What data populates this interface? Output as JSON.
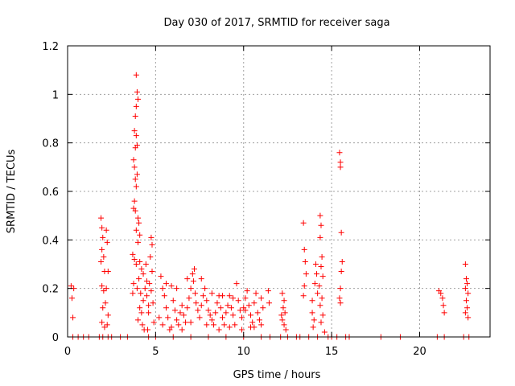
{
  "chart_data": {
    "type": "scatter",
    "title": "Day 030 of 2017, SRMTID for receiver saga",
    "xlabel": "GPS time / hours",
    "ylabel": "SRMTID / TECUs",
    "xlim": [
      0,
      24
    ],
    "ylim": [
      0,
      1.2
    ],
    "xticks": [
      0,
      5,
      10,
      15,
      20
    ],
    "xtick_labels": [
      "0",
      "5",
      "10",
      "15",
      "20"
    ],
    "yticks": [
      0,
      0.2,
      0.4,
      0.6,
      0.8,
      1.0,
      1.2
    ],
    "ytick_labels": [
      "0",
      "0.2",
      "0.4",
      "0.6",
      "0.8",
      "1",
      "1.2"
    ],
    "grid": true,
    "marker": "+",
    "color": "#ff0000",
    "series": [
      {
        "name": "SRMTID",
        "points": [
          [
            0.2,
            0.21
          ],
          [
            0.25,
            0.16
          ],
          [
            0.3,
            0.08
          ],
          [
            0.35,
            0.2
          ],
          [
            0.3,
            0.0
          ],
          [
            0.6,
            0.0
          ],
          [
            0.9,
            0.0
          ],
          [
            1.2,
            0.0
          ],
          [
            1.9,
            0.49
          ],
          [
            1.95,
            0.45
          ],
          [
            2.0,
            0.41
          ],
          [
            1.95,
            0.36
          ],
          [
            2.05,
            0.33
          ],
          [
            1.9,
            0.31
          ],
          [
            2.1,
            0.27
          ],
          [
            1.95,
            0.21
          ],
          [
            2.05,
            0.19
          ],
          [
            2.0,
            0.12
          ],
          [
            1.95,
            0.06
          ],
          [
            2.1,
            0.04
          ],
          [
            2.2,
            0.44
          ],
          [
            2.25,
            0.39
          ],
          [
            2.3,
            0.27
          ],
          [
            2.2,
            0.2
          ],
          [
            2.15,
            0.14
          ],
          [
            2.3,
            0.09
          ],
          [
            2.25,
            0.05
          ],
          [
            2.3,
            0.0
          ],
          [
            2.0,
            0.0
          ],
          [
            1.8,
            0.0
          ],
          [
            2.5,
            0.0
          ],
          [
            3.9,
            1.08
          ],
          [
            3.95,
            1.01
          ],
          [
            4.0,
            0.98
          ],
          [
            3.9,
            0.95
          ],
          [
            3.85,
            0.91
          ],
          [
            3.8,
            0.85
          ],
          [
            3.9,
            0.83
          ],
          [
            3.95,
            0.79
          ],
          [
            3.85,
            0.78
          ],
          [
            3.75,
            0.73
          ],
          [
            3.8,
            0.7
          ],
          [
            3.95,
            0.67
          ],
          [
            3.85,
            0.65
          ],
          [
            3.9,
            0.62
          ],
          [
            3.8,
            0.56
          ],
          [
            3.75,
            0.53
          ],
          [
            3.85,
            0.52
          ],
          [
            4.0,
            0.49
          ],
          [
            4.05,
            0.47
          ],
          [
            3.9,
            0.44
          ],
          [
            4.1,
            0.42
          ],
          [
            4.0,
            0.39
          ],
          [
            3.7,
            0.34
          ],
          [
            3.8,
            0.32
          ],
          [
            3.9,
            0.3
          ],
          [
            4.1,
            0.31
          ],
          [
            4.2,
            0.28
          ],
          [
            4.3,
            0.26
          ],
          [
            4.05,
            0.24
          ],
          [
            3.95,
            0.2
          ],
          [
            4.15,
            0.18
          ],
          [
            4.3,
            0.15
          ],
          [
            4.1,
            0.12
          ],
          [
            4.2,
            0.1
          ],
          [
            4.0,
            0.07
          ],
          [
            4.25,
            0.05
          ],
          [
            4.35,
            0.03
          ],
          [
            3.7,
            0.18
          ],
          [
            3.75,
            0.22
          ],
          [
            4.4,
            0.2
          ],
          [
            4.5,
            0.17
          ],
          [
            4.6,
            0.13
          ],
          [
            4.75,
            0.41
          ],
          [
            4.8,
            0.38
          ],
          [
            4.7,
            0.33
          ],
          [
            4.8,
            0.27
          ],
          [
            4.65,
            0.22
          ],
          [
            4.75,
            0.19
          ],
          [
            4.85,
            0.14
          ],
          [
            4.6,
            0.1
          ],
          [
            4.9,
            0.06
          ],
          [
            4.55,
            0.03
          ],
          [
            4.45,
            0.3
          ],
          [
            4.5,
            0.23
          ],
          [
            3.4,
            0.0
          ],
          [
            3.0,
            0.0
          ],
          [
            4.6,
            0.0
          ],
          [
            5.3,
            0.25
          ],
          [
            5.4,
            0.2
          ],
          [
            5.5,
            0.17
          ],
          [
            5.6,
            0.12
          ],
          [
            5.7,
            0.08
          ],
          [
            5.4,
            0.05
          ],
          [
            5.8,
            0.03
          ],
          [
            5.9,
            0.21
          ],
          [
            6.0,
            0.15
          ],
          [
            6.1,
            0.11
          ],
          [
            6.2,
            0.07
          ],
          [
            6.3,
            0.05
          ],
          [
            6.4,
            0.1
          ],
          [
            6.5,
            0.13
          ],
          [
            6.6,
            0.09
          ],
          [
            6.7,
            0.06
          ],
          [
            6.8,
            0.12
          ],
          [
            6.9,
            0.16
          ],
          [
            7.0,
            0.2
          ],
          [
            7.1,
            0.26
          ],
          [
            7.2,
            0.28
          ],
          [
            7.15,
            0.23
          ],
          [
            7.25,
            0.18
          ],
          [
            7.3,
            0.14
          ],
          [
            7.4,
            0.11
          ],
          [
            7.5,
            0.08
          ],
          [
            7.6,
            0.13
          ],
          [
            7.7,
            0.17
          ],
          [
            7.8,
            0.2
          ],
          [
            7.9,
            0.15
          ],
          [
            8.0,
            0.11
          ],
          [
            8.1,
            0.09
          ],
          [
            8.2,
            0.07
          ],
          [
            8.3,
            0.05
          ],
          [
            8.4,
            0.1
          ],
          [
            8.5,
            0.14
          ],
          [
            8.6,
            0.17
          ],
          [
            8.7,
            0.12
          ],
          [
            8.8,
            0.08
          ],
          [
            8.9,
            0.05
          ],
          [
            9.0,
            0.1
          ],
          [
            9.1,
            0.13
          ],
          [
            9.2,
            0.17
          ],
          [
            9.3,
            0.12
          ],
          [
            9.4,
            0.09
          ],
          [
            9.5,
            0.05
          ],
          [
            9.6,
            0.22
          ],
          [
            9.7,
            0.15
          ],
          [
            9.8,
            0.11
          ],
          [
            9.9,
            0.08
          ],
          [
            10.0,
            0.12
          ],
          [
            10.1,
            0.16
          ],
          [
            10.2,
            0.19
          ],
          [
            10.3,
            0.13
          ],
          [
            10.4,
            0.09
          ],
          [
            10.5,
            0.06
          ],
          [
            10.6,
            0.14
          ],
          [
            10.7,
            0.18
          ],
          [
            10.8,
            0.1
          ],
          [
            10.9,
            0.07
          ],
          [
            11.0,
            0.16
          ],
          [
            11.1,
            0.12
          ],
          [
            11.4,
            0.19
          ],
          [
            11.45,
            0.14
          ],
          [
            5.2,
            0.08
          ],
          [
            5.6,
            0.22
          ],
          [
            6.2,
            0.2
          ],
          [
            6.8,
            0.24
          ],
          [
            7.6,
            0.24
          ],
          [
            8.2,
            0.18
          ],
          [
            8.8,
            0.17
          ],
          [
            9.4,
            0.16
          ],
          [
            10.1,
            0.11
          ],
          [
            10.6,
            0.04
          ],
          [
            5.9,
            0.04
          ],
          [
            6.5,
            0.03
          ],
          [
            7.0,
            0.06
          ],
          [
            7.9,
            0.05
          ],
          [
            8.6,
            0.03
          ],
          [
            9.2,
            0.04
          ],
          [
            9.9,
            0.03
          ],
          [
            10.4,
            0.04
          ],
          [
            11.0,
            0.05
          ],
          [
            5.0,
            0.0
          ],
          [
            6.0,
            0.0
          ],
          [
            7.0,
            0.0
          ],
          [
            8.0,
            0.0
          ],
          [
            9.0,
            0.0
          ],
          [
            10.0,
            0.0
          ],
          [
            11.0,
            0.0
          ],
          [
            11.5,
            0.0
          ],
          [
            12.2,
            0.18
          ],
          [
            12.3,
            0.15
          ],
          [
            12.25,
            0.12
          ],
          [
            12.35,
            0.1
          ],
          [
            12.2,
            0.07
          ],
          [
            12.3,
            0.05
          ],
          [
            12.4,
            0.03
          ],
          [
            12.15,
            0.09
          ],
          [
            12.1,
            0.0
          ],
          [
            12.5,
            0.0
          ],
          [
            13.0,
            0.0
          ],
          [
            13.2,
            0.0
          ],
          [
            13.4,
            0.47
          ],
          [
            13.45,
            0.36
          ],
          [
            13.5,
            0.31
          ],
          [
            13.55,
            0.26
          ],
          [
            13.45,
            0.21
          ],
          [
            13.4,
            0.17
          ],
          [
            13.7,
            0.0
          ],
          [
            13.9,
            0.15
          ],
          [
            13.9,
            0.1
          ],
          [
            14.0,
            0.07
          ],
          [
            13.95,
            0.04
          ],
          [
            14.1,
            0.3
          ],
          [
            14.15,
            0.26
          ],
          [
            14.05,
            0.22
          ],
          [
            14.2,
            0.18
          ],
          [
            14.35,
            0.5
          ],
          [
            14.4,
            0.46
          ],
          [
            14.35,
            0.41
          ],
          [
            14.45,
            0.33
          ],
          [
            14.4,
            0.29
          ],
          [
            14.5,
            0.25
          ],
          [
            14.3,
            0.21
          ],
          [
            14.45,
            0.16
          ],
          [
            14.35,
            0.13
          ],
          [
            14.5,
            0.09
          ],
          [
            14.4,
            0.06
          ],
          [
            14.6,
            0.02
          ],
          [
            14.2,
            0.0
          ],
          [
            14.8,
            0.0
          ],
          [
            15.0,
            0.0
          ],
          [
            15.45,
            0.76
          ],
          [
            15.5,
            0.72
          ],
          [
            15.5,
            0.7
          ],
          [
            15.55,
            0.43
          ],
          [
            15.6,
            0.31
          ],
          [
            15.55,
            0.27
          ],
          [
            15.5,
            0.2
          ],
          [
            15.45,
            0.16
          ],
          [
            15.5,
            0.14
          ],
          [
            15.3,
            0.0
          ],
          [
            15.8,
            0.0
          ],
          [
            16.0,
            0.0
          ],
          [
            17.8,
            0.0
          ],
          [
            18.9,
            0.0
          ],
          [
            21.1,
            0.19
          ],
          [
            21.2,
            0.18
          ],
          [
            21.3,
            0.16
          ],
          [
            21.35,
            0.13
          ],
          [
            21.4,
            0.1
          ],
          [
            21.0,
            0.0
          ],
          [
            21.4,
            0.0
          ],
          [
            22.6,
            0.3
          ],
          [
            22.65,
            0.24
          ],
          [
            22.7,
            0.22
          ],
          [
            22.6,
            0.2
          ],
          [
            22.75,
            0.18
          ],
          [
            22.65,
            0.15
          ],
          [
            22.7,
            0.12
          ],
          [
            22.6,
            0.1
          ],
          [
            22.75,
            0.08
          ],
          [
            22.5,
            0.0
          ],
          [
            22.8,
            0.0
          ]
        ]
      }
    ]
  }
}
